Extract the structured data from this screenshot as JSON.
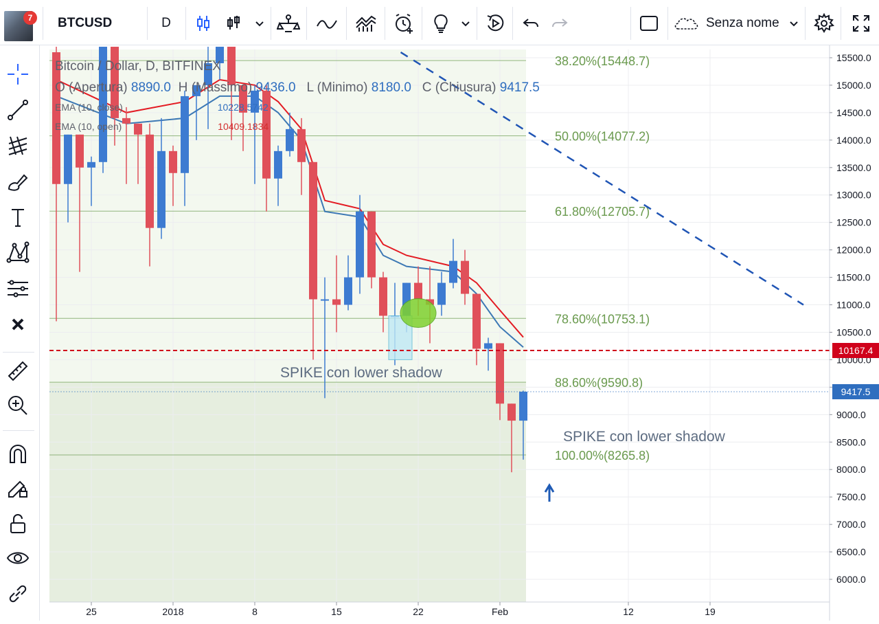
{
  "toolbar": {
    "notifications": "7",
    "symbol": "BTCUSD",
    "interval": "D",
    "layout_name": "Senza nome"
  },
  "legend": {
    "title": "Bitcoin / Dollar, D, BITFINEX",
    "open_label": "O (Apertura)",
    "open_value": "8890.0",
    "high_label": "H (Massimo)",
    "high_value": "9436.0",
    "low_label": "L (Minimo)",
    "low_value": "8180.0",
    "close_label": "C (Chiusura)",
    "close_value": "9417.5",
    "ema_close_label": "EMA (10, close)",
    "ema_close_value": "10228.5742",
    "ema_open_label": "EMA (10, open)",
    "ema_open_value": "10409.1834"
  },
  "chart_data": {
    "type": "candlestick",
    "y_axis_ticks": [
      "15500.0",
      "15000.0",
      "14500.0",
      "14000.0",
      "13500.0",
      "13000.0",
      "12500.0",
      "12000.0",
      "11500.0",
      "11000.0",
      "10500.0",
      "10000.0",
      "9500.0",
      "9000.0",
      "8500.0",
      "8000.0",
      "7500.0",
      "7000.0",
      "6500.0",
      "6000.0"
    ],
    "x_axis_ticks": [
      "25",
      "2018",
      "8",
      "15",
      "22",
      "Feb",
      "12",
      "19"
    ],
    "ylim": [
      5600,
      15700
    ],
    "fib_levels": [
      {
        "label": "38.20%(15448.7)",
        "value": 15448.7
      },
      {
        "label": "50.00%(14077.2)",
        "value": 14077.2
      },
      {
        "label": "61.80%(12705.7)",
        "value": 12705.7
      },
      {
        "label": "78.60%(10753.1)",
        "value": 10753.1
      },
      {
        "label": "88.60%(9590.8)",
        "value": 9590.8
      },
      {
        "label": "100.00%(8265.8)",
        "value": 8265.8
      }
    ],
    "support_line": {
      "value": 10167.4,
      "label": "10167.4",
      "color": "#d0021b"
    },
    "last_price": {
      "value": 9417.5,
      "label": "9417.5",
      "color": "#2f6ebf"
    },
    "annotations": [
      "SPIKE con lower shadow",
      "SPIKE con lower shadow"
    ],
    "colors": {
      "up": "#3d7bd1",
      "down": "#e0505a",
      "fib": "#6a9a4e"
    },
    "candles": [
      {
        "o": 15600,
        "h": 15700,
        "l": 10700,
        "c": 13200
      },
      {
        "o": 13200,
        "h": 14100,
        "l": 12500,
        "c": 14100
      },
      {
        "o": 14100,
        "h": 14100,
        "l": 11600,
        "c": 13500
      },
      {
        "o": 13500,
        "h": 13700,
        "l": 12800,
        "c": 13600
      },
      {
        "o": 13600,
        "h": 15700,
        "l": 13400,
        "c": 15700
      },
      {
        "o": 15700,
        "h": 15700,
        "l": 13900,
        "c": 14400
      },
      {
        "o": 14400,
        "h": 14600,
        "l": 13200,
        "c": 14300
      },
      {
        "o": 14300,
        "h": 14300,
        "l": 13200,
        "c": 14100
      },
      {
        "o": 14100,
        "h": 14300,
        "l": 11700,
        "c": 12400
      },
      {
        "o": 12400,
        "h": 14400,
        "l": 12200,
        "c": 13800
      },
      {
        "o": 13800,
        "h": 13900,
        "l": 12800,
        "c": 13400
      },
      {
        "o": 13400,
        "h": 14900,
        "l": 12800,
        "c": 14800
      },
      {
        "o": 14800,
        "h": 15000,
        "l": 14000,
        "c": 15000
      },
      {
        "o": 15000,
        "h": 15700,
        "l": 14200,
        "c": 15400
      },
      {
        "o": 15400,
        "h": 15700,
        "l": 15100,
        "c": 15700
      },
      {
        "o": 15700,
        "h": 15700,
        "l": 14000,
        "c": 15000
      },
      {
        "o": 15000,
        "h": 15000,
        "l": 13800,
        "c": 14500
      },
      {
        "o": 14500,
        "h": 15000,
        "l": 13200,
        "c": 14900
      },
      {
        "o": 14900,
        "h": 15000,
        "l": 12700,
        "c": 13300
      },
      {
        "o": 13300,
        "h": 13900,
        "l": 12800,
        "c": 13800
      },
      {
        "o": 13800,
        "h": 14500,
        "l": 13700,
        "c": 14200
      },
      {
        "o": 14200,
        "h": 14400,
        "l": 13000,
        "c": 13600
      },
      {
        "o": 13600,
        "h": 13600,
        "l": 10000,
        "c": 11100
      },
      {
        "o": 11100,
        "h": 11500,
        "l": 9300,
        "c": 11100
      },
      {
        "o": 11100,
        "h": 11900,
        "l": 10500,
        "c": 11000
      },
      {
        "o": 11000,
        "h": 11900,
        "l": 10900,
        "c": 11500
      },
      {
        "o": 11500,
        "h": 13000,
        "l": 11200,
        "c": 12700
      },
      {
        "o": 12700,
        "h": 12700,
        "l": 11300,
        "c": 11500
      },
      {
        "o": 11500,
        "h": 11600,
        "l": 10500,
        "c": 10800
      },
      {
        "o": 10800,
        "h": 11400,
        "l": 9900,
        "c": 10800
      },
      {
        "o": 10800,
        "h": 11400,
        "l": 10500,
        "c": 11400
      },
      {
        "o": 11400,
        "h": 11700,
        "l": 10800,
        "c": 11100
      },
      {
        "o": 11100,
        "h": 11700,
        "l": 10300,
        "c": 11000
      },
      {
        "o": 11000,
        "h": 11600,
        "l": 10800,
        "c": 11400
      },
      {
        "o": 11400,
        "h": 12200,
        "l": 11300,
        "c": 11800
      },
      {
        "o": 11800,
        "h": 12000,
        "l": 11000,
        "c": 11200
      },
      {
        "o": 11200,
        "h": 11200,
        "l": 9900,
        "c": 10200
      },
      {
        "o": 10200,
        "h": 10400,
        "l": 9800,
        "c": 10300
      },
      {
        "o": 10300,
        "h": 10300,
        "l": 8900,
        "c": 9200
      },
      {
        "o": 9200,
        "h": 9200,
        "l": 7950,
        "c": 8890
      },
      {
        "o": 8890,
        "h": 9436,
        "l": 8180,
        "c": 9417.5
      }
    ],
    "ema_close": [
      {
        "i": 0,
        "v": 14800
      },
      {
        "i": 6,
        "v": 14300
      },
      {
        "i": 11,
        "v": 14400
      },
      {
        "i": 14,
        "v": 14800
      },
      {
        "i": 17,
        "v": 14800
      },
      {
        "i": 19,
        "v": 14500
      },
      {
        "i": 21,
        "v": 14000
      },
      {
        "i": 23,
        "v": 12700
      },
      {
        "i": 26,
        "v": 12600
      },
      {
        "i": 28,
        "v": 11900
      },
      {
        "i": 30,
        "v": 11700
      },
      {
        "i": 34,
        "v": 11600
      },
      {
        "i": 36,
        "v": 11200
      },
      {
        "i": 38,
        "v": 10600
      },
      {
        "i": 40,
        "v": 10228.5742
      }
    ],
    "ema_open": [
      {
        "i": 0,
        "v": 15100
      },
      {
        "i": 6,
        "v": 14500
      },
      {
        "i": 11,
        "v": 14700
      },
      {
        "i": 14,
        "v": 15100
      },
      {
        "i": 17,
        "v": 15000
      },
      {
        "i": 19,
        "v": 14700
      },
      {
        "i": 21,
        "v": 14200
      },
      {
        "i": 23,
        "v": 12900
      },
      {
        "i": 26,
        "v": 12750
      },
      {
        "i": 28,
        "v": 12100
      },
      {
        "i": 30,
        "v": 11900
      },
      {
        "i": 34,
        "v": 11700
      },
      {
        "i": 36,
        "v": 11400
      },
      {
        "i": 38,
        "v": 10900
      },
      {
        "i": 40,
        "v": 10409.1834
      }
    ],
    "trendline": {
      "from": {
        "i": 29.5,
        "v": 15600
      },
      "to": {
        "i": 64,
        "v": 11000
      }
    }
  }
}
